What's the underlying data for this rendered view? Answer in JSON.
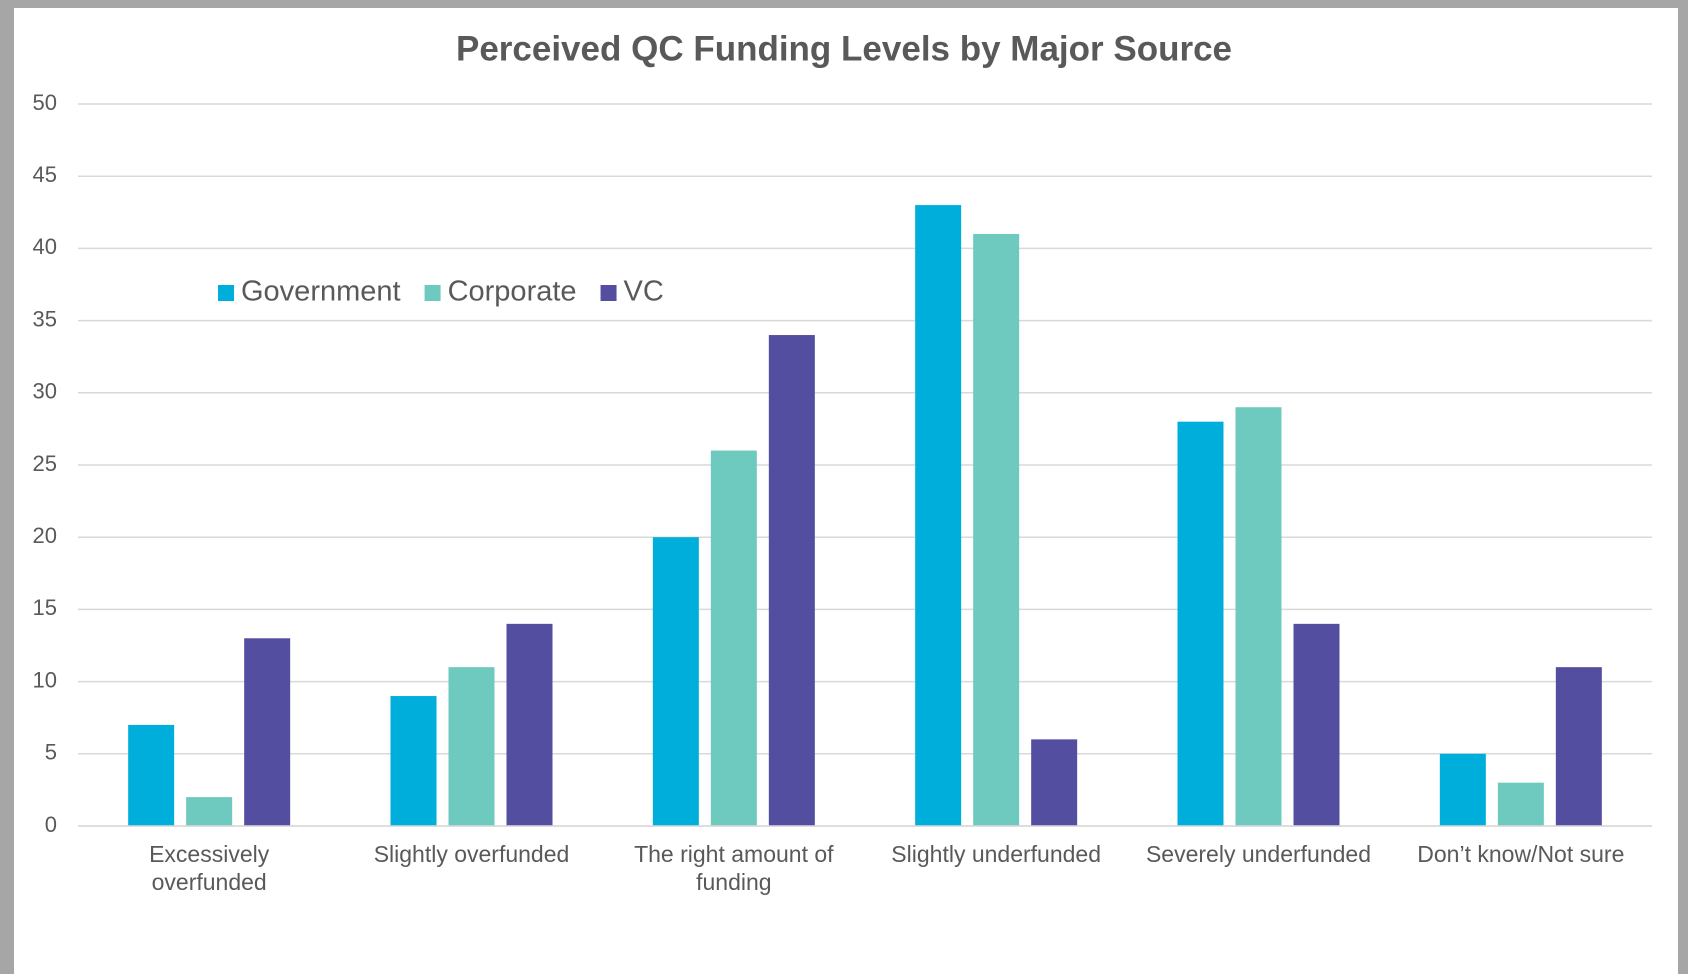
{
  "chart_data": {
    "type": "bar",
    "title": "Perceived QC Funding Levels by Major Source",
    "categories": [
      "Excessively overfunded",
      "Slightly overfunded",
      "The right amount of funding",
      "Slightly underfunded",
      "Severely underfunded",
      "Don’t know/Not sure"
    ],
    "series": [
      {
        "name": "Government",
        "color": "#00aedb",
        "values": [
          7,
          9,
          20,
          43,
          28,
          5
        ]
      },
      {
        "name": "Corporate",
        "color": "#6ec9bf",
        "values": [
          2,
          11,
          26,
          41,
          29,
          3
        ]
      },
      {
        "name": "VC",
        "color": "#534ea0",
        "values": [
          13,
          14,
          34,
          6,
          14,
          11
        ]
      }
    ],
    "ylim": [
      0,
      50
    ],
    "yticks": [
      0,
      5,
      10,
      15,
      20,
      25,
      30,
      35,
      40,
      45,
      50
    ],
    "grid": true,
    "legend": "top-left"
  }
}
